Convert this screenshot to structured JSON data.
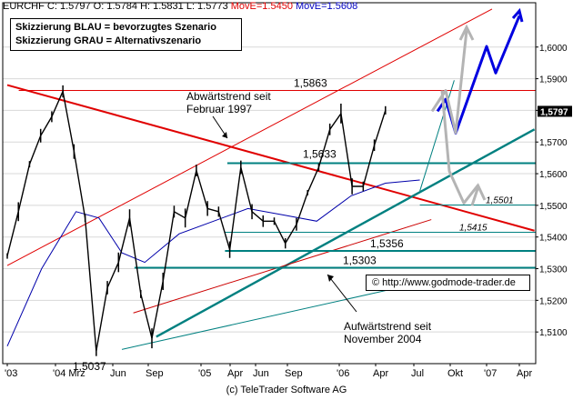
{
  "header": {
    "symbol": "EURCHF",
    "c": "C: 1.5797",
    "o": "O: 1.5784",
    "h": "H: 1.5831",
    "l": "L: 1.5773",
    "ma1": "MovE=1.5450",
    "ma2": "MovE=1.5608"
  },
  "legend": {
    "line1": "Skizzierung BLAU = bevorzugtes Szenario",
    "line2": "Skizzierung GRAU = Alternativszenario"
  },
  "copyright_box": "© http://www.godmode-trader.de",
  "footer": "(c) TeleTrader Software AG",
  "colors": {
    "price": "#000000",
    "resistance": "#e00000",
    "support": "#008080",
    "scenario_blue": "#0000e0",
    "scenario_gray": "#b4b4b4",
    "ma_slow": "#cc0000",
    "ma_fast": "#0000aa",
    "current_price_bg": "#000000"
  },
  "chart_data": {
    "type": "line",
    "instrument": "EURCHF",
    "ylim": [
      1.5,
      1.614
    ],
    "y_ticks": [
      "1.5100",
      "1.5200",
      "1.5300",
      "1.5400",
      "1.5500",
      "1.5600",
      "1.5700",
      "1.5800",
      "1.5900",
      "1.6000"
    ],
    "current_price": "1.5797",
    "x_ticks": [
      "'03",
      "'04 Mrz",
      "Jun",
      "Sep",
      "'05",
      "Apr",
      "Jun",
      "Sep",
      "'06",
      "Apr",
      "Jul",
      "Okt",
      "'07",
      "Apr"
    ],
    "series": [
      {
        "x": [
          "Okt 03",
          "Nov 03",
          "Dez 03",
          "Jan 04",
          "Feb 04",
          "Mrz 04",
          "Apr 04",
          "Mai 04",
          "Jun 04",
          "Jul 04",
          "Aug 04",
          "Sep 04",
          "Okt 04",
          "Nov 04",
          "Dez 04",
          "Jan 05",
          "Feb 05",
          "Mrz 05",
          "Apr 05",
          "Mai 05",
          "Jun 05",
          "Jul 05",
          "Aug 05",
          "Sep 05",
          "Okt 05",
          "Nov 05",
          "Dez 05",
          "Jan 06",
          "Feb 06",
          "Mrz 06",
          "Apr 06",
          "Mai 06",
          "Jun 06",
          "Jul 06",
          "Aug 06"
        ],
        "values": [
          1.534,
          1.548,
          1.563,
          1.572,
          1.578,
          1.586,
          1.567,
          1.546,
          1.504,
          1.524,
          1.532,
          1.546,
          1.522,
          1.508,
          1.526,
          1.548,
          1.546,
          1.561,
          1.549,
          1.548,
          1.536,
          1.562,
          1.548,
          1.545,
          1.545,
          1.538,
          1.544,
          1.554,
          1.562,
          1.574,
          1.579,
          1.556,
          1.556,
          1.569,
          1.58
        ]
      }
    ],
    "levels": [
      {
        "label": "1,5863",
        "value": 1.5863
      },
      {
        "label": "1,5633",
        "value": 1.5633
      },
      {
        "label": "1,5501",
        "value": 1.5501
      },
      {
        "label": "1,5415",
        "value": 1.5415
      },
      {
        "label": "1,5356",
        "value": 1.5356
      },
      {
        "label": "1,5303",
        "value": 1.5303
      },
      {
        "label": "1,5037",
        "value": 1.5037
      }
    ],
    "annotations": {
      "downtrend": [
        "Abwärtstrend seit",
        "Februar 1997"
      ],
      "uptrend": [
        "Aufwärtstrend seit",
        "November 2004"
      ]
    },
    "scenarios": {
      "blue": [
        1.5797,
        1.5835,
        1.5728,
        1.6002,
        1.5918,
        1.6098
      ],
      "gray": [
        1.5797,
        1.5863,
        1.5729,
        1.6052,
        1.5863,
        1.5608,
        1.5507,
        1.5565
      ]
    }
  }
}
